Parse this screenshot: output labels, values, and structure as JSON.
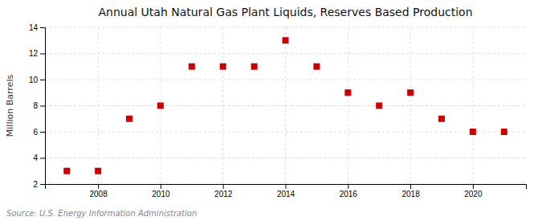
{
  "chart_data": {
    "type": "scatter",
    "title": "Annual Utah Natural Gas Plant Liquids, Reserves Based Production",
    "ylabel": "Million Barrels",
    "source": "Source: U.S. Energy Information Administration",
    "x": [
      2007,
      2008,
      2009,
      2010,
      2011,
      2012,
      2013,
      2014,
      2015,
      2016,
      2017,
      2018,
      2019,
      2020,
      2021
    ],
    "values": [
      3,
      3,
      7,
      8,
      11,
      11,
      11,
      13,
      11,
      9,
      8,
      9,
      7,
      6,
      6
    ],
    "color": "#cc0000",
    "marker": "square",
    "xlim": [
      2006.3,
      2021.7
    ],
    "ylim": [
      2,
      14
    ],
    "xticks": [
      2008,
      2010,
      2012,
      2014,
      2016,
      2018,
      2020
    ],
    "yticks": [
      2,
      4,
      6,
      8,
      10,
      12,
      14
    ],
    "grid": true
  }
}
